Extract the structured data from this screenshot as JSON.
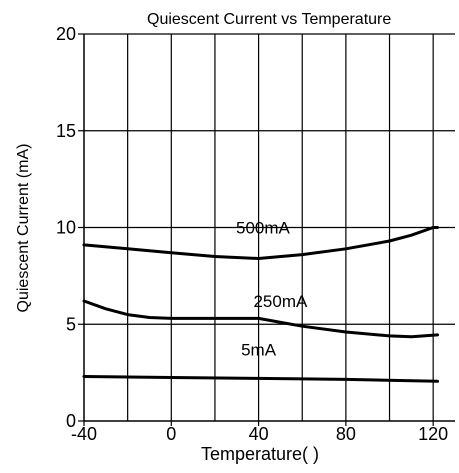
{
  "chart_data": {
    "type": "line",
    "title": "Quiescent Current vs Temperature",
    "xlabel": "Temperature( )",
    "ylabel": "Quiescent Current (mA)",
    "xlim": [
      -40,
      130
    ],
    "ylim": [
      0,
      20
    ],
    "x_ticks": [
      -40,
      0,
      40,
      80,
      120
    ],
    "y_ticks": [
      0,
      5,
      10,
      15,
      20
    ],
    "x_ticks_text": [
      "-40",
      "0",
      "40",
      "80",
      "120"
    ],
    "y_ticks_text": [
      "0",
      "5",
      "10",
      "15",
      "20"
    ],
    "grid": true,
    "legend": "inline labels",
    "line_color": "#000000",
    "series": [
      {
        "name": "500mA",
        "x": [
          -40,
          -20,
          0,
          20,
          40,
          60,
          80,
          100,
          110,
          120,
          122
        ],
        "values": [
          9.1,
          8.9,
          8.7,
          8.5,
          8.4,
          8.6,
          8.9,
          9.3,
          9.6,
          10.0,
          10.0
        ]
      },
      {
        "name": "250mA",
        "x": [
          -40,
          -30,
          -20,
          -10,
          0,
          20,
          40,
          60,
          80,
          100,
          110,
          122
        ],
        "values": [
          6.2,
          5.8,
          5.5,
          5.35,
          5.3,
          5.3,
          5.3,
          4.9,
          4.6,
          4.4,
          4.35,
          4.45
        ]
      },
      {
        "name": "5mA",
        "x": [
          -40,
          0,
          40,
          80,
          122
        ],
        "values": [
          2.3,
          2.25,
          2.2,
          2.15,
          2.05
        ]
      }
    ]
  }
}
